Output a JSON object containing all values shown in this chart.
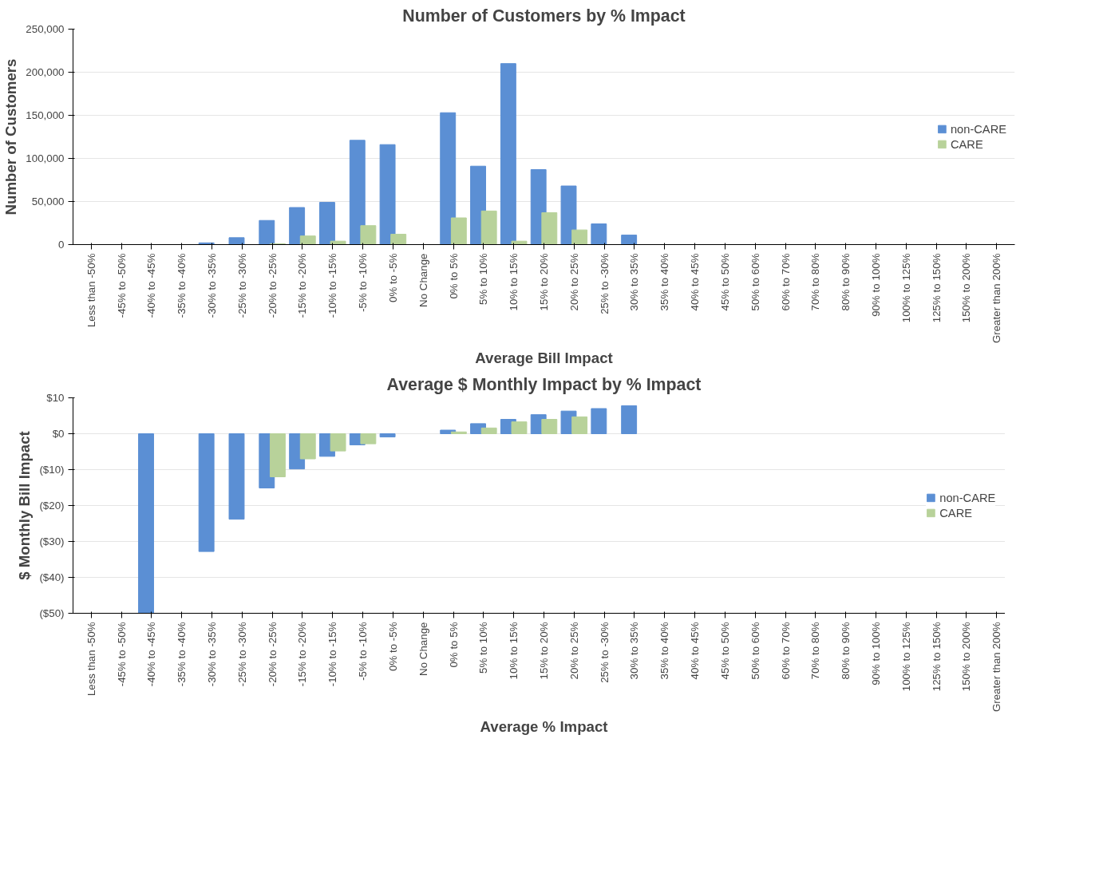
{
  "chart_data": [
    {
      "type": "bar",
      "title": "Number of Customers by % Impact",
      "xlabel": "Average Bill Impact",
      "ylabel": "Number of Customers",
      "categories": [
        "Less than -50%",
        "-45% to -50%",
        "-40% to -45%",
        "-35% to -40%",
        "-30% to -35%",
        "-25% to -30%",
        "-20% to -25%",
        "-15% to -20%",
        "-10% to -15%",
        "-5% to -10%",
        "0% to -5%",
        "No Change",
        "0% to 5%",
        "5% to 10%",
        "10% to 15%",
        "15% to 20%",
        "20% to 25%",
        "25% to -30%",
        "30% to 35%",
        "35% to 40%",
        "40% to 45%",
        "45% to 50%",
        "50% to 60%",
        "60% to 70%",
        "70% to 80%",
        "80% to 90%",
        "90% to 100%",
        "100% to 125%",
        "125% to 150%",
        "150% to 200%",
        "Greater than 200%"
      ],
      "series": [
        {
          "name": "non-CARE",
          "color": "#5b8fd4",
          "values": [
            0,
            0,
            0,
            0,
            2000,
            8000,
            28000,
            43000,
            49000,
            121000,
            116000,
            0,
            153000,
            91000,
            210000,
            87000,
            68000,
            24000,
            11000,
            0,
            0,
            0,
            0,
            0,
            0,
            0,
            0,
            0,
            0,
            0,
            0
          ]
        },
        {
          "name": "CARE",
          "color": "#b8d29a",
          "values": [
            0,
            0,
            0,
            0,
            0,
            0,
            1000,
            10000,
            4000,
            22000,
            12000,
            0,
            31000,
            39000,
            4000,
            37000,
            17000,
            0,
            0,
            0,
            0,
            0,
            0,
            0,
            0,
            0,
            0,
            0,
            0,
            0,
            0
          ]
        }
      ],
      "ylim": [
        0,
        250000
      ],
      "yticks": [
        {
          "value": 0,
          "label": "0"
        },
        {
          "value": 50000,
          "label": "50,000"
        },
        {
          "value": 100000,
          "label": "100,000"
        },
        {
          "value": 150000,
          "label": "150,000"
        },
        {
          "value": 200000,
          "label": "200,000"
        },
        {
          "value": 250000,
          "label": "250,000"
        }
      ],
      "grid": "y",
      "legend": "right"
    },
    {
      "type": "bar",
      "title": "Average $ Monthly Impact by % Impact",
      "xlabel": "Average % Impact",
      "ylabel": "$ Monthly Bill Impact",
      "categories": [
        "Less than -50%",
        "-45% to -50%",
        "-40% to -45%",
        "-35% to -40%",
        "-30% to -35%",
        "-25% to -30%",
        "-20% to -25%",
        "-15% to -20%",
        "-10% to -15%",
        "-5% to -10%",
        "0% to -5%",
        "No Change",
        "0% to 5%",
        "5% to 10%",
        "10% to 15%",
        "15% to 20%",
        "20% to 25%",
        "25% to -30%",
        "30% to 35%",
        "35% to 40%",
        "40% to 45%",
        "45% to 50%",
        "50% to 60%",
        "60% to 70%",
        "70% to 80%",
        "80% to 90%",
        "90% to 100%",
        "100% to 125%",
        "125% to 150%",
        "150% to 200%",
        "Greater than 200%"
      ],
      "series": [
        {
          "name": "non-CARE",
          "color": "#5b8fd4",
          "values": [
            null,
            null,
            -50,
            null,
            -32.8,
            -23.8,
            -15.1,
            -9.8,
            -6.3,
            -3.1,
            -0.9,
            null,
            1.0,
            2.8,
            4.0,
            5.3,
            6.3,
            7.0,
            7.8,
            null,
            null,
            null,
            null,
            null,
            null,
            null,
            null,
            null,
            null,
            null,
            null
          ]
        },
        {
          "name": "CARE",
          "color": "#b8d29a",
          "values": [
            null,
            null,
            null,
            null,
            null,
            null,
            -12.0,
            -7.0,
            -4.8,
            -2.8,
            null,
            null,
            0.5,
            1.6,
            3.3,
            4.0,
            4.7,
            null,
            null,
            null,
            null,
            null,
            null,
            null,
            null,
            null,
            null,
            null,
            null,
            null,
            null
          ]
        }
      ],
      "ylim": [
        -50,
        10
      ],
      "yticks": [
        {
          "value": 10,
          "label": "$10"
        },
        {
          "value": 0,
          "label": "$0"
        },
        {
          "value": -10,
          "label": "($10)"
        },
        {
          "value": -20,
          "label": "($20)"
        },
        {
          "value": -30,
          "label": "($30)"
        },
        {
          "value": -40,
          "label": "($40)"
        },
        {
          "value": -50,
          "label": "($50)"
        }
      ],
      "grid": "y",
      "legend": "right"
    }
  ]
}
